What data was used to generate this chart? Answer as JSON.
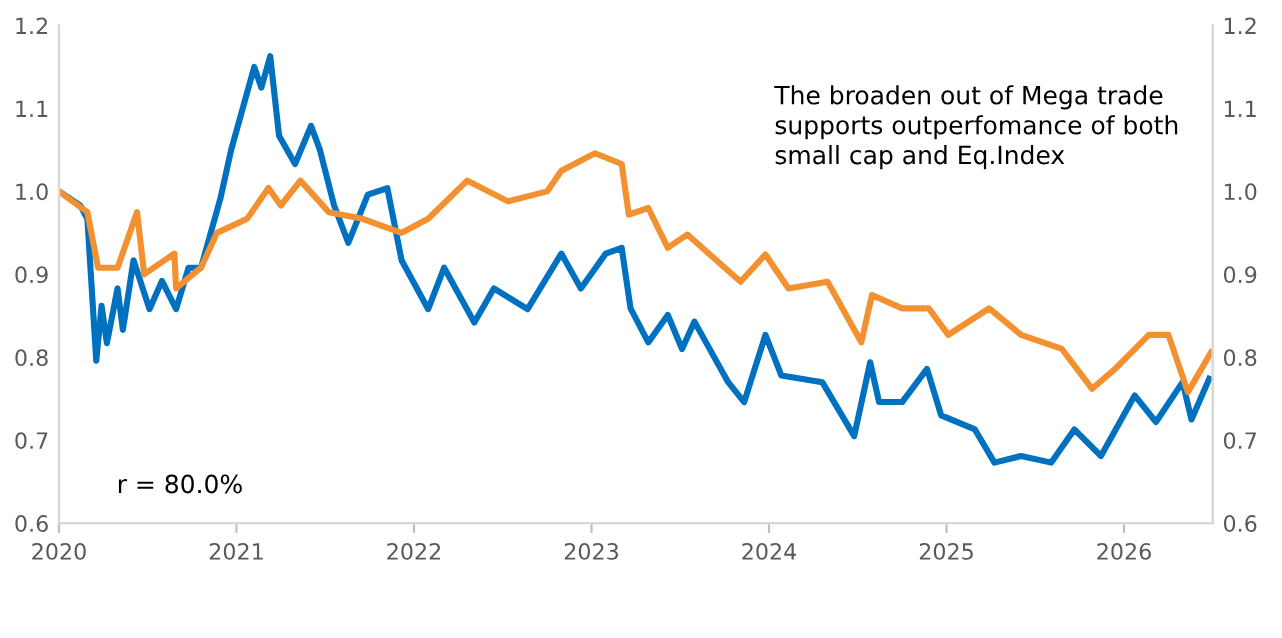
{
  "chart_data": {
    "type": "line",
    "xlim": [
      2020,
      2026.5
    ],
    "xticks": [
      {
        "value": 2020,
        "label": "2020"
      },
      {
        "value": 2021,
        "label": "2021"
      },
      {
        "value": 2022,
        "label": "2022"
      },
      {
        "value": 2023,
        "label": "2023"
      },
      {
        "value": 2024,
        "label": "2024"
      },
      {
        "value": 2025,
        "label": "2025"
      },
      {
        "value": 2026,
        "label": "2026"
      }
    ],
    "ylim": [
      0.6,
      1.2
    ],
    "yticks": [
      0.6,
      0.7,
      0.8,
      0.9,
      {
        "value": 1.0,
        "label": "1.0"
      },
      1.1,
      1.2
    ],
    "y2lim": [
      0.6,
      1.2
    ],
    "y2ticks": [
      0.6,
      0.7,
      0.8,
      0.9,
      {
        "value": 1.0,
        "label": "1.0"
      },
      1.1,
      1.2
    ],
    "grid": false,
    "line_style": "solid",
    "marker": "none",
    "annotations": [
      "r = 80.0%",
      "The broaden out of Mega trade\nsupports outperfomance of both\nsmall cap and Eq.Index"
    ],
    "series": [
      {
        "color": "#0070c0",
        "x": [
          2020.0,
          2020.12,
          2020.16,
          2020.21,
          2020.24,
          2020.27,
          2020.33,
          2020.36,
          2020.42,
          2020.51,
          2020.58,
          2020.66,
          2020.73,
          2020.8,
          2020.91,
          2020.97,
          2021.1,
          2021.14,
          2021.19,
          2021.24,
          2021.33,
          2021.42,
          2021.47,
          2021.55,
          2021.63,
          2021.74,
          2021.85,
          2021.93,
          2022.08,
          2022.17,
          2022.34,
          2022.45,
          2022.64,
          2022.83,
          2022.94,
          2023.08,
          2023.17,
          2023.22,
          2023.32,
          2023.43,
          2023.51,
          2023.58,
          2023.77,
          2023.86,
          2023.98,
          2024.07,
          2024.3,
          2024.48,
          2024.57,
          2024.62,
          2024.75,
          2024.89,
          2024.97,
          2025.16,
          2025.27,
          2025.42,
          2025.59,
          2025.72,
          2025.87,
          2026.06,
          2026.18,
          2026.33,
          2026.38,
          2026.48
        ],
        "values": [
          1.0,
          0.983,
          0.967,
          0.796,
          0.862,
          0.817,
          0.883,
          0.833,
          0.917,
          0.858,
          0.892,
          0.858,
          0.908,
          0.908,
          0.992,
          1.05,
          1.15,
          1.125,
          1.163,
          1.067,
          1.033,
          1.079,
          1.05,
          0.983,
          0.938,
          0.996,
          1.004,
          0.917,
          0.858,
          0.908,
          0.842,
          0.883,
          0.858,
          0.925,
          0.883,
          0.925,
          0.932,
          0.859,
          0.818,
          0.851,
          0.81,
          0.843,
          0.77,
          0.746,
          0.827,
          0.778,
          0.77,
          0.705,
          0.794,
          0.746,
          0.746,
          0.786,
          0.73,
          0.713,
          0.673,
          0.681,
          0.673,
          0.713,
          0.681,
          0.754,
          0.722,
          0.77,
          0.725,
          0.774
        ]
      },
      {
        "color": "#f39130",
        "x": [
          2020.0,
          2020.16,
          2020.22,
          2020.33,
          2020.44,
          2020.48,
          2020.65,
          2020.66,
          2020.8,
          2020.89,
          2021.06,
          2021.18,
          2021.25,
          2021.36,
          2021.52,
          2021.71,
          2021.93,
          2022.08,
          2022.3,
          2022.53,
          2022.75,
          2022.83,
          2023.02,
          2023.17,
          2023.21,
          2023.32,
          2023.43,
          2023.54,
          2023.84,
          2023.98,
          2024.11,
          2024.33,
          2024.52,
          2024.58,
          2024.75,
          2024.9,
          2025.01,
          2025.24,
          2025.42,
          2025.65,
          2025.82,
          2025.95,
          2026.14,
          2026.25,
          2026.36,
          2026.49
        ],
        "values": [
          1.0,
          0.975,
          0.908,
          0.908,
          0.975,
          0.9,
          0.925,
          0.883,
          0.908,
          0.95,
          0.967,
          1.004,
          0.983,
          1.013,
          0.975,
          0.967,
          0.95,
          0.967,
          1.013,
          0.988,
          1.0,
          1.025,
          1.046,
          1.033,
          0.972,
          0.98,
          0.932,
          0.948,
          0.891,
          0.924,
          0.883,
          0.891,
          0.818,
          0.875,
          0.859,
          0.859,
          0.827,
          0.859,
          0.827,
          0.81,
          0.762,
          0.786,
          0.827,
          0.827,
          0.758,
          0.806
        ]
      }
    ]
  }
}
